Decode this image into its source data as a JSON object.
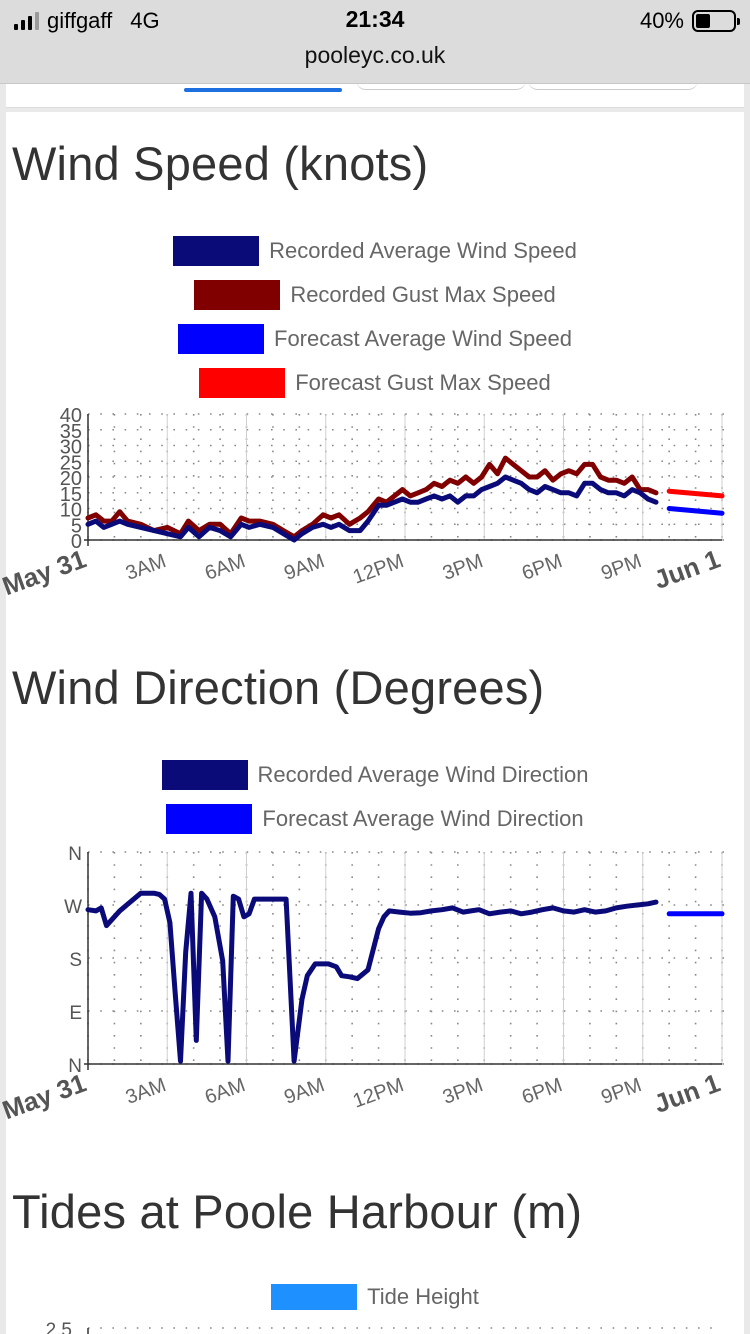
{
  "status": {
    "carrier": "giffgaff",
    "network": "4G",
    "time": "21:34",
    "battery": "40%",
    "battery_level": 0.4,
    "url": "pooleyc.co.uk"
  },
  "colors": {
    "rec_avg": "#0a0a78",
    "rec_gust": "#800000",
    "fc_avg": "#0000ff",
    "fc_gust": "#ff0000",
    "tide": "#1e90ff"
  },
  "wind_speed": {
    "title": "Wind Speed (knots)",
    "legend": [
      {
        "label": "Recorded Average Wind Speed",
        "color": "#0a0a78"
      },
      {
        "label": "Recorded Gust Max Speed",
        "color": "#800000"
      },
      {
        "label": "Forecast Average Wind Speed",
        "color": "#0000ff"
      },
      {
        "label": "Forecast Gust Max Speed",
        "color": "#ff0000"
      }
    ]
  },
  "wind_dir": {
    "title": "Wind Direction (Degrees)",
    "legend": [
      {
        "label": "Recorded Average Wind Direction",
        "color": "#0a0a78"
      },
      {
        "label": "Forecast Average Wind Direction",
        "color": "#0000ff"
      }
    ]
  },
  "tides": {
    "title": "Tides at Poole Harbour (m)",
    "legend": [
      {
        "label": "Tide Height",
        "color": "#1e90ff"
      }
    ],
    "first_tick": "2.5"
  },
  "chart_data": [
    {
      "type": "line",
      "title": "Wind Speed (knots)",
      "xlabel": "",
      "ylabel": "",
      "x_ticks": [
        "May 31",
        "3AM",
        "6AM",
        "9AM",
        "12PM",
        "3PM",
        "6PM",
        "9PM",
        "Jun 1"
      ],
      "xlim": [
        0,
        24
      ],
      "ylim": [
        0,
        40
      ],
      "y_ticks": [
        0,
        5,
        10,
        15,
        20,
        25,
        30,
        35,
        40
      ],
      "grid": true,
      "legend_position": "top",
      "series": [
        {
          "name": "Recorded Gust Max Speed",
          "color": "#800000",
          "x": [
            0,
            0.3,
            0.6,
            0.9,
            1.2,
            1.5,
            2,
            2.5,
            3,
            3.5,
            3.8,
            4.2,
            4.6,
            5,
            5.4,
            5.8,
            6.1,
            6.5,
            7,
            7.4,
            7.8,
            8.1,
            8.5,
            8.9,
            9.2,
            9.5,
            9.9,
            10.3,
            10.6,
            11,
            11.3,
            11.6,
            11.9,
            12.2,
            12.5,
            12.8,
            13.1,
            13.4,
            13.7,
            14,
            14.3,
            14.6,
            14.9,
            15.2,
            15.5,
            15.8,
            16.1,
            16.4,
            16.7,
            17,
            17.3,
            17.6,
            17.9,
            18.2,
            18.5,
            18.8,
            19.1,
            19.4,
            19.7,
            20,
            20.3,
            20.6,
            20.9,
            21.2,
            21.5
          ],
          "y": [
            7,
            8,
            6,
            6,
            9,
            6,
            5,
            3,
            4,
            2,
            6,
            3,
            5,
            5,
            2,
            7,
            6,
            6,
            5,
            3,
            1,
            3,
            5,
            8,
            7,
            8,
            5,
            7,
            9,
            13,
            12,
            14,
            16,
            14,
            15,
            16,
            18,
            17,
            19,
            18,
            20,
            18,
            20,
            24,
            21,
            26,
            24,
            22,
            20,
            20,
            22,
            19,
            21,
            22,
            21,
            24,
            24,
            20,
            19,
            19,
            18,
            20,
            16,
            16,
            15
          ]
        },
        {
          "name": "Recorded Average Wind Speed",
          "color": "#0a0a78",
          "x": [
            0,
            0.3,
            0.6,
            0.9,
            1.2,
            1.5,
            2,
            2.5,
            3,
            3.5,
            3.8,
            4.2,
            4.6,
            5,
            5.4,
            5.8,
            6.1,
            6.5,
            7,
            7.4,
            7.8,
            8.1,
            8.5,
            8.9,
            9.2,
            9.5,
            9.9,
            10.3,
            10.6,
            11,
            11.3,
            11.6,
            11.9,
            12.2,
            12.5,
            12.8,
            13.1,
            13.4,
            13.7,
            14,
            14.3,
            14.6,
            14.9,
            15.2,
            15.5,
            15.8,
            16.1,
            16.4,
            16.7,
            17,
            17.3,
            17.6,
            17.9,
            18.2,
            18.5,
            18.8,
            19.1,
            19.4,
            19.7,
            20,
            20.3,
            20.6,
            20.9,
            21.2,
            21.5
          ],
          "y": [
            5,
            6,
            4,
            5,
            6,
            5,
            4,
            3,
            2,
            1,
            4,
            1,
            4,
            3,
            1,
            5,
            4,
            5,
            4,
            2,
            0,
            2,
            4,
            5,
            4,
            5,
            3,
            3,
            6,
            11,
            11,
            12,
            13,
            12,
            12,
            13,
            14,
            13,
            14,
            12,
            14,
            14,
            16,
            17,
            18,
            20,
            19,
            18,
            16,
            15,
            17,
            16,
            15,
            15,
            14,
            18,
            18,
            16,
            15,
            15,
            14,
            16,
            15,
            13,
            12
          ]
        },
        {
          "name": "Forecast Average Wind Speed",
          "color": "#0000ff",
          "x": [
            22,
            24
          ],
          "y": [
            10,
            8.5
          ]
        },
        {
          "name": "Forecast Gust Max Speed",
          "color": "#ff0000",
          "x": [
            22,
            24
          ],
          "y": [
            15.5,
            14
          ]
        }
      ]
    },
    {
      "type": "line",
      "title": "Wind Direction (Degrees)",
      "xlabel": "",
      "ylabel": "",
      "x_ticks": [
        "May 31",
        "3AM",
        "6AM",
        "9AM",
        "12PM",
        "3PM",
        "6PM",
        "9PM",
        "Jun 1"
      ],
      "xlim": [
        0,
        24
      ],
      "ylim": [
        0,
        360
      ],
      "y_ticks": [
        "N",
        "E",
        "S",
        "W",
        "N"
      ],
      "y_tick_values": [
        0,
        90,
        180,
        270,
        360
      ],
      "grid": true,
      "legend_position": "top",
      "series": [
        {
          "name": "Recorded Average Wind Direction",
          "color": "#0a0a78",
          "x": [
            0,
            0.3,
            0.5,
            0.7,
            1,
            1.2,
            2,
            2.5,
            2.7,
            2.9,
            3.1,
            3.3,
            3.5,
            3.7,
            3.9,
            4.1,
            4.3,
            4.5,
            4.8,
            5.1,
            5.3,
            5.5,
            5.7,
            5.9,
            6.1,
            6.3,
            6.5,
            6.7,
            7,
            7.3,
            7.5,
            7.8,
            8.1,
            8.3,
            8.6,
            8.9,
            9.1,
            9.4,
            9.6,
            9.9,
            10.2,
            10.6,
            11,
            11.2,
            11.4,
            11.8,
            12.2,
            12.6,
            13,
            13.4,
            13.8,
            14.2,
            14.5,
            14.8,
            15.2,
            15.6,
            16,
            16.4,
            16.8,
            17.2,
            17.6,
            18,
            18.4,
            18.8,
            19.2,
            19.6,
            20,
            20.4,
            20.8,
            21.2,
            21.5
          ],
          "y": [
            262,
            260,
            265,
            235,
            250,
            260,
            290,
            290,
            288,
            280,
            240,
            120,
            5,
            190,
            290,
            40,
            290,
            280,
            250,
            175,
            5,
            285,
            280,
            250,
            255,
            280,
            280,
            280,
            280,
            280,
            280,
            5,
            110,
            150,
            170,
            170,
            170,
            165,
            150,
            148,
            145,
            160,
            230,
            250,
            260,
            258,
            256,
            257,
            260,
            262,
            265,
            258,
            260,
            262,
            255,
            258,
            260,
            255,
            258,
            262,
            265,
            260,
            258,
            262,
            258,
            260,
            265,
            268,
            270,
            272,
            275
          ]
        },
        {
          "name": "Forecast Average Wind Direction",
          "color": "#0000ff",
          "x": [
            22,
            24
          ],
          "y": [
            255,
            255
          ]
        }
      ]
    },
    {
      "type": "line",
      "title": "Tides at Poole Harbour (m)",
      "xlabel": "",
      "ylabel": "",
      "legend_position": "top",
      "y_ticks": [
        "2.5"
      ],
      "series": [
        {
          "name": "Tide Height",
          "color": "#1e90ff",
          "x": [],
          "y": []
        }
      ]
    }
  ]
}
